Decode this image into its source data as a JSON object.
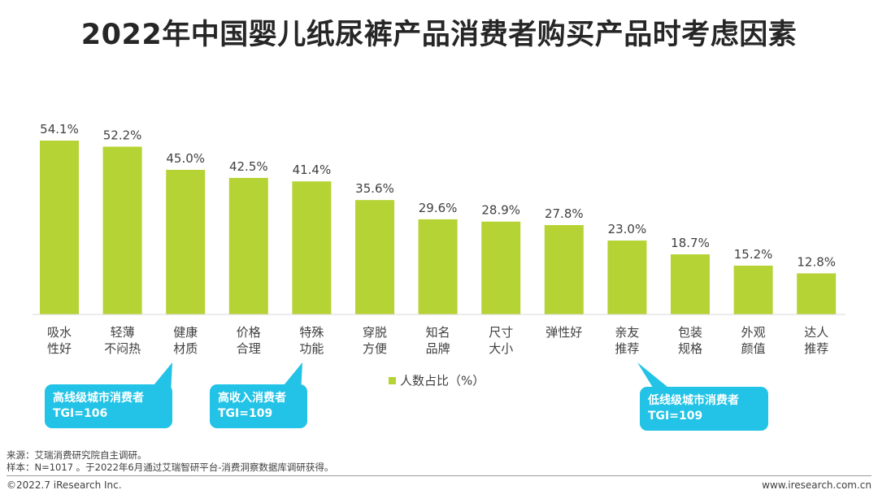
{
  "title": "2022年中国婴儿纸尿裤产品消费者购买产品时考虑因素",
  "chart_data": {
    "type": "bar",
    "categories": [
      [
        "吸水",
        "性好"
      ],
      [
        "轻薄",
        "不闷热"
      ],
      [
        "健康",
        "材质"
      ],
      [
        "价格",
        "合理"
      ],
      [
        "特殊",
        "功能"
      ],
      [
        "穿脱",
        "方便"
      ],
      [
        "知名",
        "品牌"
      ],
      [
        "尺寸",
        "大小"
      ],
      [
        "弹性好"
      ],
      [
        "亲友",
        "推荐"
      ],
      [
        "包装",
        "规格"
      ],
      [
        "外观",
        "颜值"
      ],
      [
        "达人",
        "推荐"
      ]
    ],
    "series": [
      {
        "name": "人数占比（%）",
        "values": [
          54.1,
          52.2,
          45.0,
          42.5,
          41.4,
          35.6,
          29.6,
          28.9,
          27.8,
          23.0,
          18.7,
          15.2,
          12.8
        ],
        "value_labels": [
          "54.1%",
          "52.2%",
          "45.0%",
          "42.5%",
          "41.4%",
          "35.6%",
          "29.6%",
          "28.9%",
          "27.8%",
          "23.0%",
          "18.7%",
          "15.2%",
          "12.8%"
        ]
      }
    ],
    "ylim": [
      0,
      54.1
    ],
    "grid": false,
    "legend_position": "bottom-center",
    "bar_color": "#b5d334"
  },
  "callouts": [
    {
      "line1": "高线级城市消费者",
      "line2": "TGI=106"
    },
    {
      "line1": "高收入消费者",
      "line2": "TGI=109"
    },
    {
      "line1": "低线级城市消费者",
      "line2": "TGI=109"
    }
  ],
  "callout_color": "#22c3e6",
  "source": "来源：艾瑞消费研究院自主调研。",
  "sample": "样本：N=1017 。于2022年6月通过艾瑞智研平台-消费洞察数据库调研获得。",
  "copyright": "©2022.7 iResearch Inc.",
  "website": "www.iresearch.com.cn"
}
